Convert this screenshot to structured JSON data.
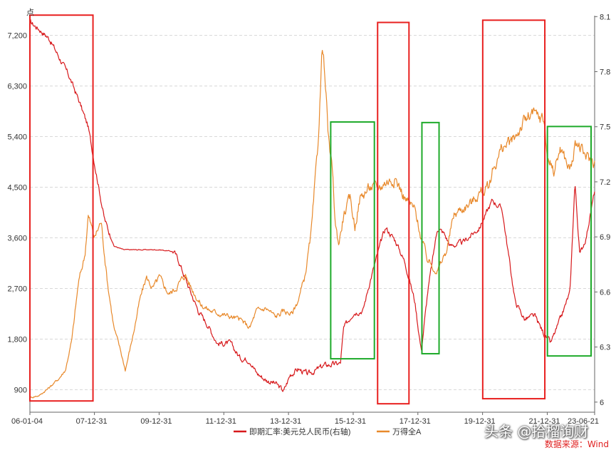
{
  "chart_data": {
    "type": "line",
    "y_left_unit": "点",
    "y_left_ticks": [
      900,
      1800,
      2700,
      3600,
      4500,
      5400,
      6300,
      7200
    ],
    "y_left_tick_labels": [
      "900",
      "1,800",
      "2,700",
      "3,600",
      "4,500",
      "5,400",
      "6,300",
      "7,200"
    ],
    "y_left_range": [
      500,
      7550
    ],
    "y_right_ticks": [
      6.0,
      6.3,
      6.6,
      6.9,
      7.2,
      7.5,
      7.8,
      8.1
    ],
    "y_right_tick_labels": [
      "6",
      "6.3",
      "6.6",
      "6.9",
      "7.2",
      "7.5",
      "7.8",
      "8.1"
    ],
    "y_right_range": [
      5.945,
      8.105
    ],
    "x_range": [
      2006.0,
      2023.46
    ],
    "x_ticks": [
      2006.0,
      2007.995,
      2009.995,
      2011.995,
      2013.995,
      2015.995,
      2017.995,
      2019.995,
      2021.995,
      2023.46
    ],
    "x_tick_labels": [
      "06-01-04",
      "07-12-31",
      "09-12-31",
      "11-12-31",
      "13-12-31",
      "15-12-31",
      "17-12-31",
      "19-12-31",
      "21-12-31",
      "23-06-21"
    ],
    "grid": "horizontal dashed",
    "legend_position": "bottom-center",
    "series": [
      {
        "name": "即期汇率:美元兑人民币(右轴)",
        "axis": "right",
        "color": "#d7191c",
        "x": [
          2006.0,
          2006.3,
          2006.6,
          2006.9,
          2007.2,
          2007.5,
          2007.8,
          2008.0,
          2008.3,
          2008.6,
          2008.9,
          2009.2,
          2009.5,
          2010.0,
          2010.45,
          2010.6,
          2010.9,
          2011.2,
          2011.5,
          2011.8,
          2012.2,
          2012.5,
          2012.8,
          2013.0,
          2013.3,
          2013.6,
          2013.85,
          2014.05,
          2014.3,
          2014.6,
          2015.1,
          2015.6,
          2015.7,
          2016.0,
          2016.3,
          2016.5,
          2016.9,
          2017.0,
          2017.3,
          2017.6,
          2017.9,
          2018.1,
          2018.3,
          2018.6,
          2018.8,
          2019.0,
          2019.4,
          2019.9,
          2020.3,
          2020.6,
          2021.0,
          2021.3,
          2021.6,
          2021.9,
          2022.1,
          2022.4,
          2022.7,
          2022.85,
          2023.0,
          2023.2,
          2023.46
        ],
        "y": [
          8.07,
          8.03,
          7.98,
          7.88,
          7.78,
          7.65,
          7.5,
          7.3,
          7.0,
          6.85,
          6.83,
          6.83,
          6.83,
          6.83,
          6.82,
          6.77,
          6.63,
          6.5,
          6.42,
          6.32,
          6.32,
          6.24,
          6.23,
          6.16,
          6.12,
          6.1,
          6.06,
          6.15,
          6.18,
          6.15,
          6.2,
          6.21,
          6.4,
          6.49,
          6.5,
          6.65,
          6.9,
          6.95,
          6.88,
          6.76,
          6.55,
          6.28,
          6.6,
          6.95,
          6.92,
          6.85,
          6.87,
          6.95,
          7.1,
          7.05,
          6.55,
          6.45,
          6.47,
          6.37,
          6.32,
          6.45,
          6.6,
          7.2,
          6.8,
          6.9,
          7.15
        ]
      },
      {
        "name": "万得全A",
        "axis": "left",
        "color": "#e8892b",
        "x": [
          2006.0,
          2006.3,
          2006.6,
          2006.9,
          2007.1,
          2007.3,
          2007.5,
          2007.7,
          2007.8,
          2008.0,
          2008.2,
          2008.4,
          2008.6,
          2008.8,
          2008.95,
          2009.2,
          2009.4,
          2009.6,
          2009.8,
          2010.0,
          2010.3,
          2010.5,
          2010.8,
          2011.0,
          2011.3,
          2011.6,
          2011.9,
          2012.2,
          2012.5,
          2012.8,
          2013.0,
          2013.3,
          2013.6,
          2013.85,
          2014.1,
          2014.3,
          2014.5,
          2014.7,
          2014.9,
          2015.05,
          2015.25,
          2015.35,
          2015.45,
          2015.55,
          2015.7,
          2015.9,
          2016.05,
          2016.2,
          2016.5,
          2016.8,
          2017.0,
          2017.3,
          2017.6,
          2017.9,
          2018.1,
          2018.3,
          2018.6,
          2018.9,
          2019.1,
          2019.3,
          2019.6,
          2019.9,
          2020.2,
          2020.3,
          2020.6,
          2020.9,
          2021.2,
          2021.5,
          2021.9,
          2022.0,
          2022.2,
          2022.4,
          2022.7,
          2022.9,
          2023.1,
          2023.3,
          2023.46
        ],
        "y": [
          760,
          800,
          940,
          1100,
          1250,
          1800,
          2800,
          3300,
          4000,
          3600,
          3900,
          2800,
          2000,
          1600,
          1250,
          1900,
          2500,
          2900,
          2700,
          2900,
          2600,
          2700,
          2950,
          2700,
          2400,
          2300,
          2250,
          2200,
          2150,
          2000,
          2300,
          2350,
          2200,
          2300,
          2250,
          2500,
          2900,
          3700,
          5200,
          7100,
          5200,
          4800,
          3800,
          3500,
          4000,
          4300,
          3800,
          4300,
          4500,
          4500,
          4600,
          4650,
          4300,
          4100,
          3600,
          3200,
          3000,
          3400,
          4000,
          4100,
          4200,
          4400,
          4500,
          4800,
          5200,
          5300,
          5600,
          5800,
          5700,
          5000,
          4800,
          5200,
          4800,
          5300,
          5100,
          5000,
          4950
        ]
      }
    ],
    "highlight_boxes": [
      {
        "color": "red",
        "x_start": 2006.0,
        "x_end": 2007.95,
        "y_top": 7560,
        "y_bottom": 700
      },
      {
        "color": "green",
        "x_start": 2015.3,
        "x_end": 2016.65,
        "y_top": 5660,
        "y_bottom": 1450
      },
      {
        "color": "red",
        "x_start": 2016.75,
        "x_end": 2017.72,
        "y_top": 7430,
        "y_bottom": 650
      },
      {
        "color": "green",
        "x_start": 2018.12,
        "x_end": 2018.65,
        "y_top": 5650,
        "y_bottom": 1540
      },
      {
        "color": "red",
        "x_start": 2020.0,
        "x_end": 2021.92,
        "y_top": 7470,
        "y_bottom": 740
      },
      {
        "color": "green",
        "x_start": 2022.0,
        "x_end": 2023.35,
        "y_top": 5580,
        "y_bottom": 1500
      }
    ]
  },
  "watermark": "头条 @拾榴询财",
  "source": "数据来源：Wind",
  "colors": {
    "fx_line": "#d7191c",
    "index_line": "#e8892b",
    "box_red": "#e8201f",
    "box_green": "#1eaa2a",
    "grid": "#d8d8d8"
  }
}
